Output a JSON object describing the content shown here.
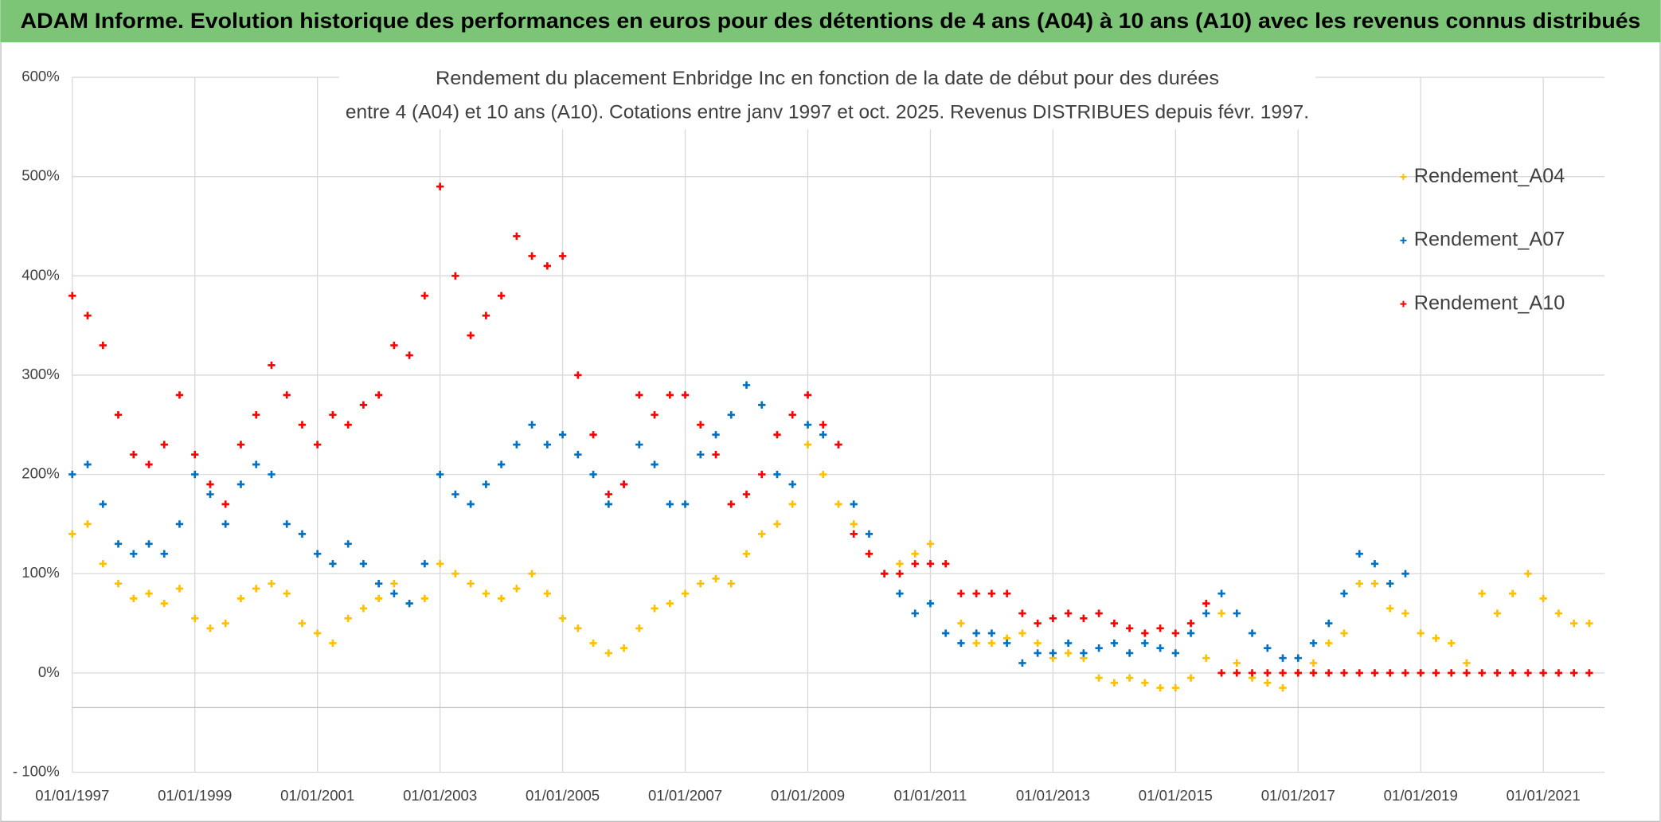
{
  "header": "ADAM Informe. Evolution historique des performances en euros pour des détentions de 4 ans (A04) à 10 ans (A10) avec les revenus connus distribués",
  "chart_data": {
    "type": "scatter",
    "title": "Rendement du placement Enbridge Inc en fonction de la date de début pour des durées",
    "subtitle": "entre 4 (A04) et 10 ans (A10). Cotations entre janv 1997 et oct. 2025. Revenus DISTRIBUES depuis févr. 1997.",
    "x": [
      1997,
      1997.25,
      1997.5,
      1997.75,
      1998,
      1998.25,
      1998.5,
      1998.75,
      1999,
      1999.25,
      1999.5,
      1999.75,
      2000,
      2000.25,
      2000.5,
      2000.75,
      2001,
      2001.25,
      2001.5,
      2001.75,
      2002,
      2002.25,
      2002.5,
      2002.75,
      2003,
      2003.25,
      2003.5,
      2003.75,
      2004,
      2004.25,
      2004.5,
      2004.75,
      2005,
      2005.25,
      2005.5,
      2005.75,
      2006,
      2006.25,
      2006.5,
      2006.75,
      2007,
      2007.25,
      2007.5,
      2007.75,
      2008,
      2008.25,
      2008.5,
      2008.75,
      2009,
      2009.25,
      2009.5,
      2009.75,
      2010,
      2010.25,
      2010.5,
      2010.75,
      2011,
      2011.25,
      2011.5,
      2011.75,
      2012,
      2012.25,
      2012.5,
      2012.75,
      2013,
      2013.25,
      2013.5,
      2013.75,
      2014,
      2014.25,
      2014.5,
      2014.75,
      2015,
      2015.25,
      2015.5,
      2015.75,
      2016,
      2016.25,
      2016.5,
      2016.75,
      2017,
      2017.25,
      2017.5,
      2017.75,
      2018,
      2018.25,
      2018.5,
      2018.75,
      2019,
      2019.25,
      2019.5,
      2019.75,
      2020,
      2020.25,
      2020.5,
      2020.75,
      2021,
      2021.25,
      2021.5,
      2021.75
    ],
    "series": [
      {
        "name": "Rendement_A04",
        "color": "#ffc000",
        "values": [
          140,
          150,
          110,
          90,
          75,
          80,
          70,
          85,
          55,
          45,
          50,
          75,
          85,
          90,
          80,
          50,
          40,
          30,
          55,
          65,
          75,
          90,
          70,
          75,
          110,
          100,
          90,
          80,
          75,
          85,
          100,
          80,
          55,
          45,
          30,
          20,
          25,
          45,
          65,
          70,
          80,
          90,
          95,
          90,
          120,
          140,
          150,
          170,
          230,
          200,
          170,
          150,
          120,
          100,
          110,
          120,
          130,
          110,
          50,
          30,
          30,
          35,
          40,
          30,
          15,
          20,
          15,
          -5,
          -10,
          -5,
          -10,
          -15,
          -15,
          -5,
          15,
          60,
          10,
          -5,
          -10,
          -15,
          0,
          10,
          30,
          40,
          90,
          90,
          65,
          60,
          40,
          35,
          30,
          10,
          80,
          60,
          80,
          100,
          75,
          60,
          50,
          50
        ]
      },
      {
        "name": "Rendement_A07",
        "color": "#0070c0",
        "values": [
          200,
          210,
          170,
          130,
          120,
          130,
          120,
          150,
          200,
          180,
          150,
          190,
          210,
          200,
          150,
          140,
          120,
          110,
          130,
          110,
          90,
          80,
          70,
          110,
          200,
          180,
          170,
          190,
          210,
          230,
          250,
          230,
          240,
          220,
          200,
          170,
          190,
          230,
          210,
          170,
          170,
          220,
          240,
          260,
          290,
          270,
          200,
          190,
          250,
          240,
          230,
          170,
          140,
          100,
          80,
          60,
          70,
          40,
          30,
          40,
          40,
          30,
          10,
          20,
          20,
          30,
          20,
          25,
          30,
          20,
          30,
          25,
          20,
          40,
          60,
          80,
          60,
          40,
          25,
          15,
          15,
          30,
          50,
          80,
          120,
          110,
          90,
          100,
          null,
          null,
          null,
          null,
          null,
          null,
          null,
          null,
          null,
          null,
          null,
          null
        ]
      },
      {
        "name": "Rendement_A10",
        "color": "#ff0000",
        "values": [
          380,
          360,
          330,
          260,
          220,
          210,
          230,
          280,
          220,
          190,
          170,
          230,
          260,
          310,
          280,
          250,
          230,
          260,
          250,
          270,
          280,
          330,
          320,
          380,
          490,
          400,
          340,
          360,
          380,
          440,
          420,
          410,
          420,
          300,
          240,
          180,
          190,
          280,
          260,
          280,
          280,
          250,
          220,
          170,
          180,
          200,
          240,
          260,
          280,
          250,
          230,
          140,
          120,
          100,
          100,
          110,
          110,
          110,
          80,
          80,
          80,
          80,
          60,
          50,
          55,
          60,
          55,
          60,
          50,
          45,
          40,
          45,
          40,
          50,
          70,
          0,
          0,
          0,
          0,
          0,
          0,
          0,
          0,
          0,
          0,
          0,
          0,
          0,
          0,
          0,
          0,
          0,
          0,
          0,
          0,
          0,
          0,
          0,
          0,
          0
        ]
      }
    ],
    "xlim": [
      1997,
      2022
    ],
    "xticks": [
      {
        "value": 1997,
        "label": "01/01/1997"
      },
      {
        "value": 1999,
        "label": "01/01/1999"
      },
      {
        "value": 2001,
        "label": "01/01/2001"
      },
      {
        "value": 2003,
        "label": "01/01/2003"
      },
      {
        "value": 2005,
        "label": "01/01/2005"
      },
      {
        "value": 2007,
        "label": "01/01/2007"
      },
      {
        "value": 2009,
        "label": "01/01/2009"
      },
      {
        "value": 2011,
        "label": "01/01/2011"
      },
      {
        "value": 2013,
        "label": "01/01/2013"
      },
      {
        "value": 2015,
        "label": "01/01/2015"
      },
      {
        "value": 2017,
        "label": "01/01/2017"
      },
      {
        "value": 2019,
        "label": "01/01/2019"
      },
      {
        "value": 2021,
        "label": "01/01/2021"
      }
    ],
    "ylim": [
      -100,
      600
    ],
    "yticks": [
      {
        "value": -100,
        "label": "- 100%"
      },
      {
        "value": 0,
        "label": "0%"
      },
      {
        "value": 100,
        "label": "100%"
      },
      {
        "value": 200,
        "label": "200%"
      },
      {
        "value": 300,
        "label": "300%"
      },
      {
        "value": 400,
        "label": "400%"
      },
      {
        "value": 500,
        "label": "500%"
      },
      {
        "value": 600,
        "label": "600%"
      }
    ],
    "grid": true,
    "legend": "right"
  }
}
